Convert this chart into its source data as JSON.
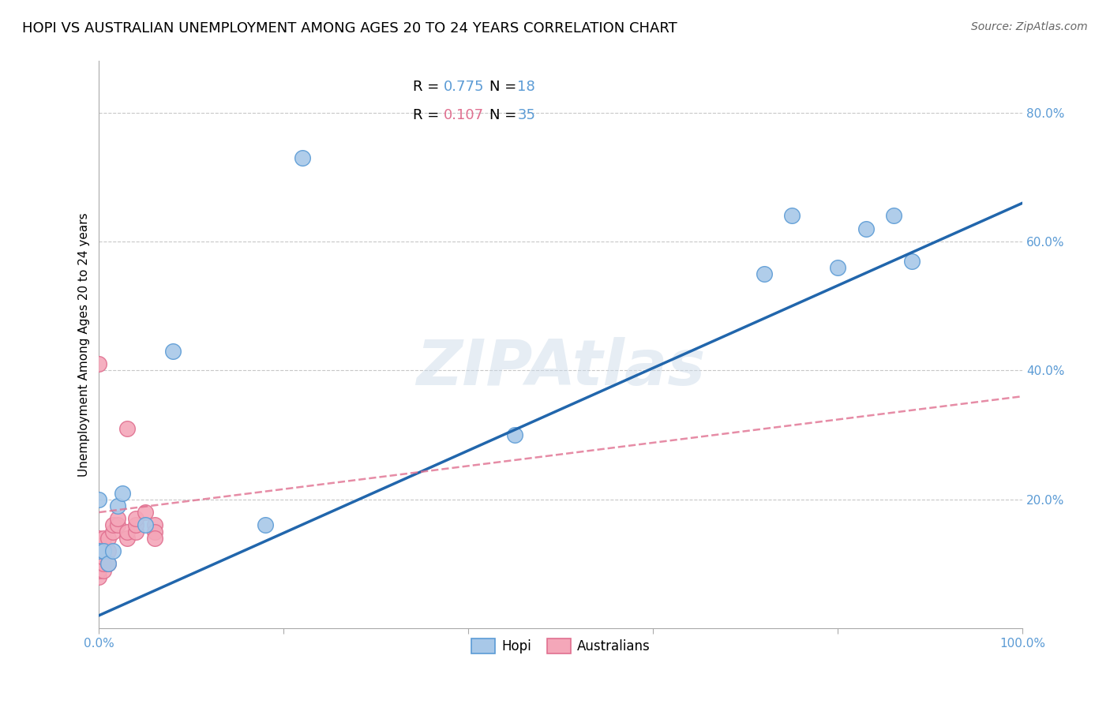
{
  "title": "HOPI VS AUSTRALIAN UNEMPLOYMENT AMONG AGES 20 TO 24 YEARS CORRELATION CHART",
  "source": "Source: ZipAtlas.com",
  "ylabel": "Unemployment Among Ages 20 to 24 years",
  "xlim": [
    0.0,
    1.0
  ],
  "ylim": [
    0.0,
    0.88
  ],
  "xticks": [
    0.0,
    0.2,
    0.4,
    0.6,
    0.8,
    1.0
  ],
  "yticks": [
    0.2,
    0.4,
    0.6,
    0.8
  ],
  "xticklabels": [
    "0.0%",
    "",
    "",
    "",
    "",
    "100.0%"
  ],
  "yticklabels": [
    "20.0%",
    "40.0%",
    "60.0%",
    "80.0%"
  ],
  "hopi_R": 0.775,
  "hopi_N": 18,
  "australians_R": 0.107,
  "australians_N": 35,
  "hopi_color": "#a8c8e8",
  "hopi_edge_color": "#5b9bd5",
  "aus_color": "#f4a7b9",
  "aus_edge_color": "#e07090",
  "trend_hopi_color": "#2166ac",
  "trend_aus_color": "#e07090",
  "background_color": "#ffffff",
  "watermark": "ZIPAtlas",
  "hopi_x": [
    0.0,
    0.0,
    0.005,
    0.01,
    0.015,
    0.02,
    0.025,
    0.05,
    0.08,
    0.18,
    0.45,
    0.72,
    0.75,
    0.8,
    0.83,
    0.86,
    0.88,
    0.22
  ],
  "hopi_y": [
    0.2,
    0.12,
    0.12,
    0.1,
    0.12,
    0.19,
    0.21,
    0.16,
    0.43,
    0.16,
    0.3,
    0.55,
    0.64,
    0.56,
    0.62,
    0.64,
    0.57,
    0.73
  ],
  "aus_x": [
    0.0,
    0.0,
    0.0,
    0.0,
    0.0,
    0.0,
    0.0,
    0.0,
    0.0,
    0.0,
    0.0,
    0.0,
    0.005,
    0.005,
    0.005,
    0.005,
    0.005,
    0.005,
    0.01,
    0.01,
    0.01,
    0.015,
    0.015,
    0.02,
    0.02,
    0.03,
    0.03,
    0.03,
    0.04,
    0.04,
    0.04,
    0.05,
    0.06,
    0.06,
    0.06
  ],
  "aus_y": [
    0.08,
    0.09,
    0.1,
    0.1,
    0.11,
    0.11,
    0.12,
    0.12,
    0.13,
    0.13,
    0.14,
    0.41,
    0.09,
    0.1,
    0.11,
    0.12,
    0.13,
    0.14,
    0.1,
    0.12,
    0.14,
    0.15,
    0.16,
    0.16,
    0.17,
    0.14,
    0.15,
    0.31,
    0.15,
    0.16,
    0.17,
    0.18,
    0.16,
    0.15,
    0.14
  ],
  "grid_color": "#c8c8c8",
  "title_fontsize": 13,
  "axis_label_fontsize": 11,
  "tick_fontsize": 11,
  "legend_fontsize": 13
}
